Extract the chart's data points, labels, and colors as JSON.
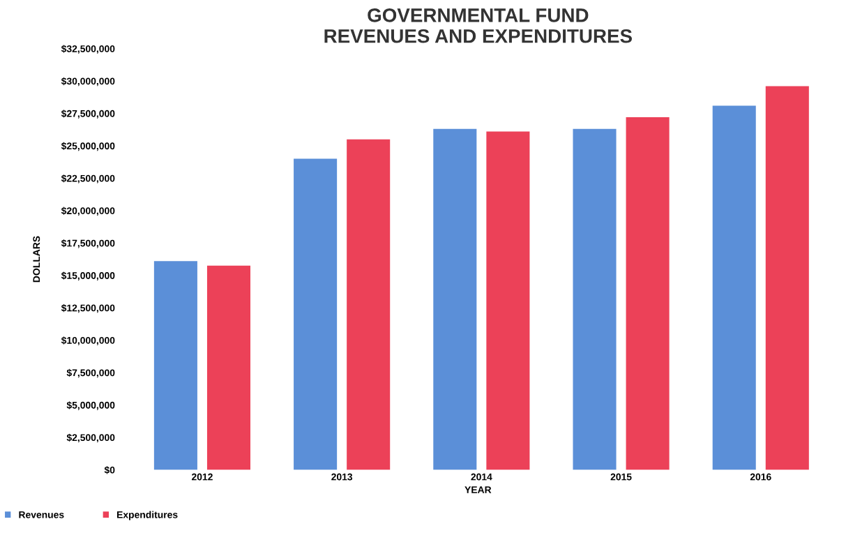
{
  "chart_data": {
    "type": "bar",
    "title": "GOVERNMENTAL FUND\nREVENUES AND EXPENDITURES",
    "xlabel": "YEAR",
    "ylabel": "DOLLARS",
    "categories": [
      "2012",
      "2013",
      "2014",
      "2015",
      "2016"
    ],
    "series": [
      {
        "name": "Revenues",
        "color": "#5b8fd8",
        "values": [
          16100000,
          24000000,
          26300000,
          26300000,
          28100000
        ]
      },
      {
        "name": "Expenditures",
        "color": "#ec4158",
        "values": [
          15750000,
          25500000,
          26100000,
          27200000,
          29600000
        ]
      }
    ],
    "ylim": [
      0,
      32500000
    ],
    "yticks": [
      {
        "value": 0,
        "label": "$0"
      },
      {
        "value": 2500000,
        "label": "$2,500,000"
      },
      {
        "value": 5000000,
        "label": "$5,000,000"
      },
      {
        "value": 7500000,
        "label": "$7,500,000"
      },
      {
        "value": 10000000,
        "label": "$10,000,000"
      },
      {
        "value": 12500000,
        "label": "$12,500,000"
      },
      {
        "value": 15000000,
        "label": "$15,000,000"
      },
      {
        "value": 17500000,
        "label": "$17,500,000"
      },
      {
        "value": 20000000,
        "label": "$20,000,000"
      },
      {
        "value": 22500000,
        "label": "$22,500,000"
      },
      {
        "value": 25000000,
        "label": "$25,000,000"
      },
      {
        "value": 27500000,
        "label": "$27,500,000"
      },
      {
        "value": 30000000,
        "label": "$30,000,000"
      },
      {
        "value": 32500000,
        "label": "$32,500,000"
      }
    ],
    "grid": false,
    "legend": "bottom left"
  }
}
